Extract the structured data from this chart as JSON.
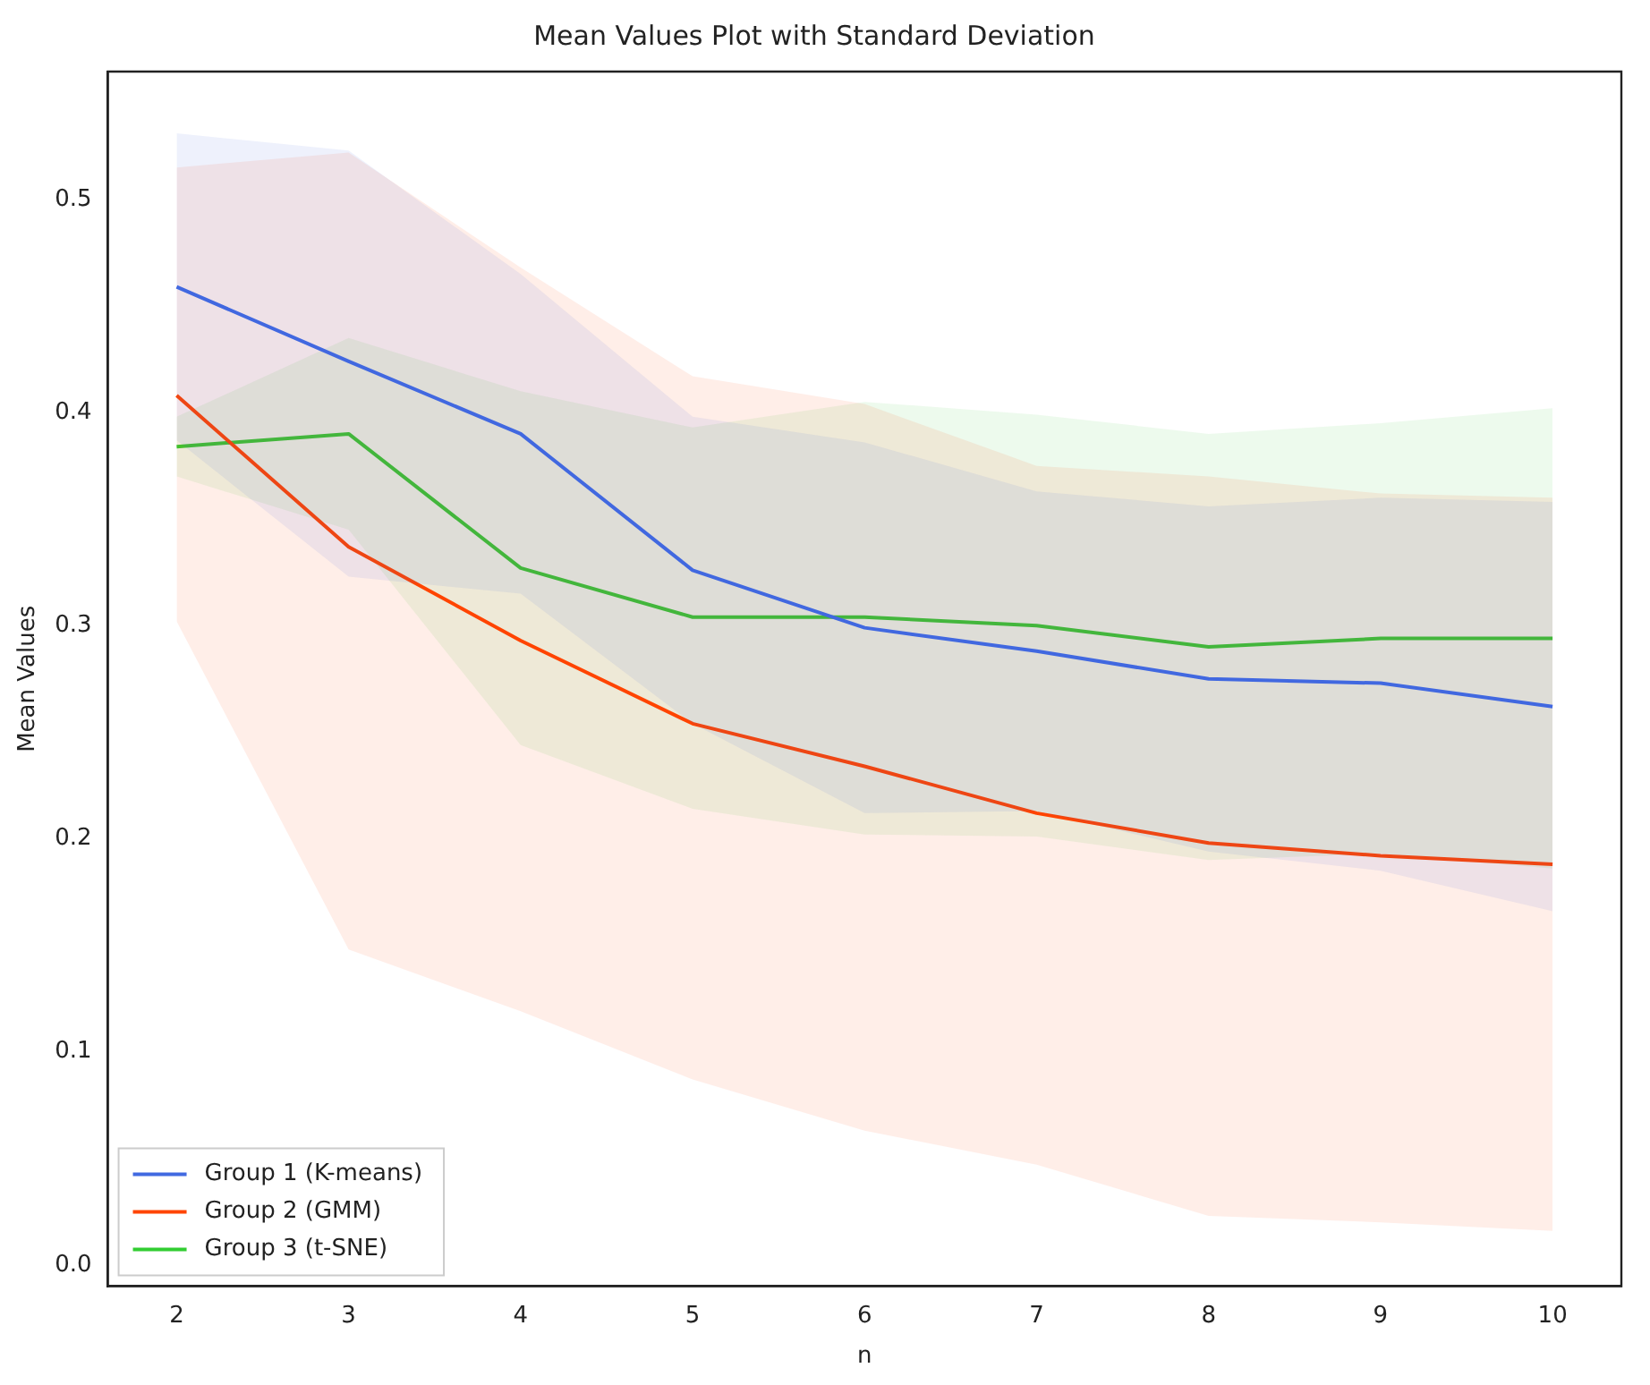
{
  "chart_data": {
    "type": "line",
    "title": "Mean Values Plot with Standard Deviation",
    "xlabel": "n",
    "ylabel": "Mean Values",
    "x": [
      2,
      3,
      4,
      5,
      6,
      7,
      8,
      9,
      10
    ],
    "xlim": [
      1.6,
      10.4
    ],
    "xticks": [
      2,
      3,
      4,
      5,
      6,
      7,
      8,
      9,
      10
    ],
    "ylim": [
      -0.01,
      0.56
    ],
    "yticks": [
      {
        "value": 0,
        "label": "0.0"
      },
      {
        "value": 0.1,
        "label": "0.1"
      },
      {
        "value": 0.2,
        "label": "0.2"
      },
      {
        "value": 0.3,
        "label": "0.3"
      },
      {
        "value": 0.4,
        "label": "0.4"
      },
      {
        "value": 0.5,
        "label": "0.5"
      }
    ],
    "grid": false,
    "legend": "bottom left",
    "marker": "none",
    "line_style": "solid",
    "series": [
      {
        "name": "Group 1 (K-means)",
        "color": "#4169e1",
        "values": [
          0.459,
          0.424,
          0.39,
          0.326,
          0.299,
          0.288,
          0.275,
          0.273,
          0.262
        ],
        "lower": [
          0.387,
          0.323,
          0.315,
          0.254,
          0.212,
          0.213,
          0.194,
          0.185,
          0.166
        ],
        "upper": [
          0.531,
          0.523,
          0.465,
          0.398,
          0.386,
          0.363,
          0.356,
          0.36,
          0.358
        ]
      },
      {
        "name": "Group 2 (GMM)",
        "color": "#ff4500",
        "values": [
          0.408,
          0.337,
          0.293,
          0.254,
          0.234,
          0.212,
          0.198,
          0.192,
          0.188
        ],
        "lower": [
          0.302,
          0.148,
          0.119,
          0.087,
          0.063,
          0.047,
          0.023,
          0.02,
          0.016
        ],
        "upper": [
          0.515,
          0.522,
          0.468,
          0.417,
          0.404,
          0.375,
          0.37,
          0.362,
          0.36
        ]
      },
      {
        "name": "Group 3 (t-SNE)",
        "color": "#32cd32",
        "values": [
          0.384,
          0.39,
          0.327,
          0.304,
          0.304,
          0.3,
          0.29,
          0.294,
          0.294
        ],
        "lower": [
          0.37,
          0.345,
          0.244,
          0.214,
          0.202,
          0.201,
          0.19,
          0.193,
          0.186
        ],
        "upper": [
          0.398,
          0.435,
          0.41,
          0.393,
          0.405,
          0.399,
          0.39,
          0.395,
          0.402
        ]
      }
    ]
  }
}
